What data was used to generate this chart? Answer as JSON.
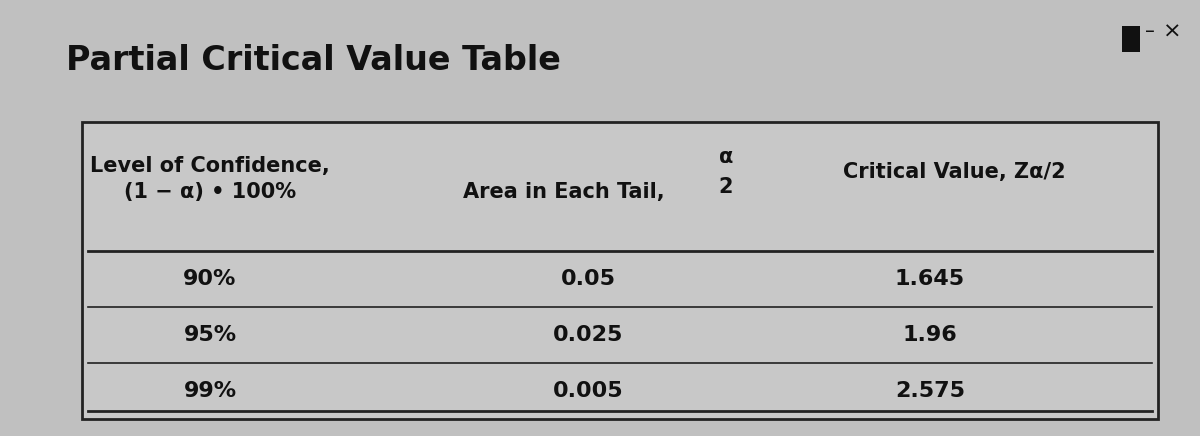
{
  "title": "Partial Critical Value Table",
  "title_fontsize": 24,
  "bg_color": "#c0c0c0",
  "table_bg_color": "#c8c8c8",
  "border_color": "#222222",
  "text_color": "#111111",
  "header_col1_line1": "Level of Confidence,",
  "header_col1_line2": "(1 − α) • 100%",
  "header_col2_text": "Area in Each Tail,",
  "header_col2_alpha": "α",
  "header_col2_denom": "2",
  "header_col3": "Critical Value, Zα/2",
  "data_rows": [
    [
      "90%",
      "0.05",
      "1.645"
    ],
    [
      "95%",
      "0.025",
      "1.96"
    ],
    [
      "99%",
      "0.005",
      "2.575"
    ]
  ],
  "data_fontsize": 16,
  "header_fontsize": 15,
  "window_minimize": "–",
  "window_close": "×"
}
